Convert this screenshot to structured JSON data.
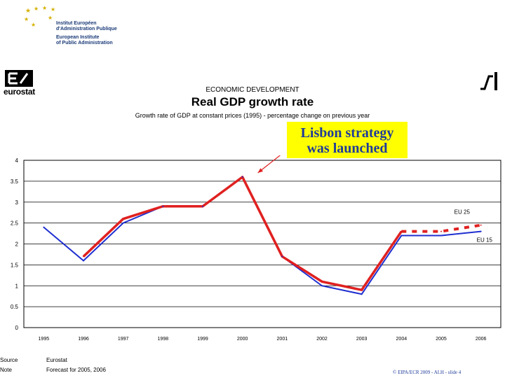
{
  "header": {
    "eipa_lines": [
      "Institut Européen",
      "d'Administration Publique",
      "European Institute",
      "of Public Administration"
    ],
    "eurostat_word": "eurostat",
    "heading": "ECONOMIC DEVELOPMENT",
    "title": "Real GDP growth rate",
    "subtitle": "Growth rate of GDP at constant prices (1995) - percentage change on previous year"
  },
  "callout": {
    "line1": "Lisbon strategy",
    "line2": "was launched"
  },
  "footer": {
    "source_label": "Source",
    "source_value": "Eurostat",
    "note_label": "Note",
    "note_value": "Forecast for 2005, 2006",
    "copyright": "© EIPA/ECR 2009 - AI.H - slide 4"
  },
  "colors": {
    "eu25": "#e02020",
    "eu15": "#1f2fd0",
    "callout_bg": "#ffff00",
    "callout_text": "#1f3b9a",
    "eipa_blue": "#1a3a78",
    "eipa_stars": "#d4b000"
  },
  "chart_data": {
    "type": "line",
    "categories": [
      "1995",
      "1996",
      "1997",
      "1998",
      "1999",
      "2000",
      "2001",
      "2002",
      "2003",
      "2004",
      "2005",
      "2006"
    ],
    "ylim": [
      0,
      4
    ],
    "yticks": [
      "0",
      "0.5",
      "1",
      "1.5",
      "2",
      "2.5",
      "3",
      "3.5",
      "4"
    ],
    "grid": true,
    "series": [
      {
        "name": "EU 25",
        "color": "#e02020",
        "values": [
          null,
          1.7,
          2.6,
          2.9,
          2.9,
          3.6,
          1.7,
          1.1,
          0.9,
          2.3,
          2.3,
          2.45
        ],
        "forecast_from": "2004"
      },
      {
        "name": "EU 15",
        "color": "#1f2fd0",
        "values": [
          2.4,
          1.6,
          2.5,
          2.9,
          2.9,
          3.6,
          1.7,
          1.0,
          0.8,
          2.2,
          2.2,
          2.3
        ]
      }
    ]
  }
}
